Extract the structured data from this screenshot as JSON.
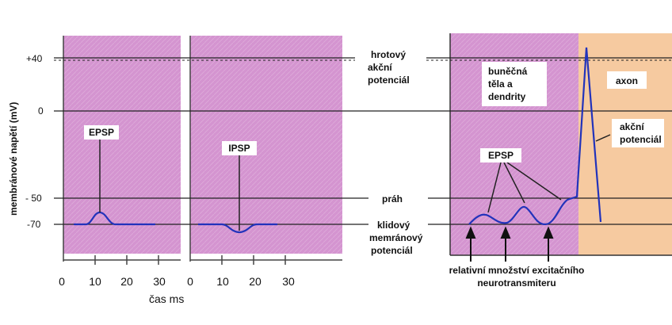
{
  "y_axis": {
    "label": "membránové napětí (mV)",
    "ticks": [
      "+40",
      "0",
      "- 50",
      "-70"
    ]
  },
  "x_axis": {
    "label": "čas ms",
    "ticks": [
      "0",
      "10",
      "20",
      "30"
    ]
  },
  "panel_epsp": {
    "label": "EPSP"
  },
  "panel_ipsp": {
    "label": "IPSP"
  },
  "middle_labels": {
    "spike": [
      "hrotový",
      "akční",
      "potenciál"
    ],
    "threshold": "práh",
    "resting": [
      "klidový",
      "memránový",
      "potenciál"
    ]
  },
  "right_panel": {
    "soma_label": [
      "buněčná",
      "těla a",
      "dendrity"
    ],
    "axon_label": "axon",
    "ap_label": [
      "akční",
      "potenciál"
    ],
    "epsp_label": "EPSP",
    "bottom_label": [
      "relativní množství excitačního",
      "neurotransmiteru"
    ]
  },
  "colors": {
    "panel_pink": "#d494d0",
    "axon_orange": "#f6caa0",
    "trace_blue": "#2233bb",
    "guide_line": "#222222"
  }
}
